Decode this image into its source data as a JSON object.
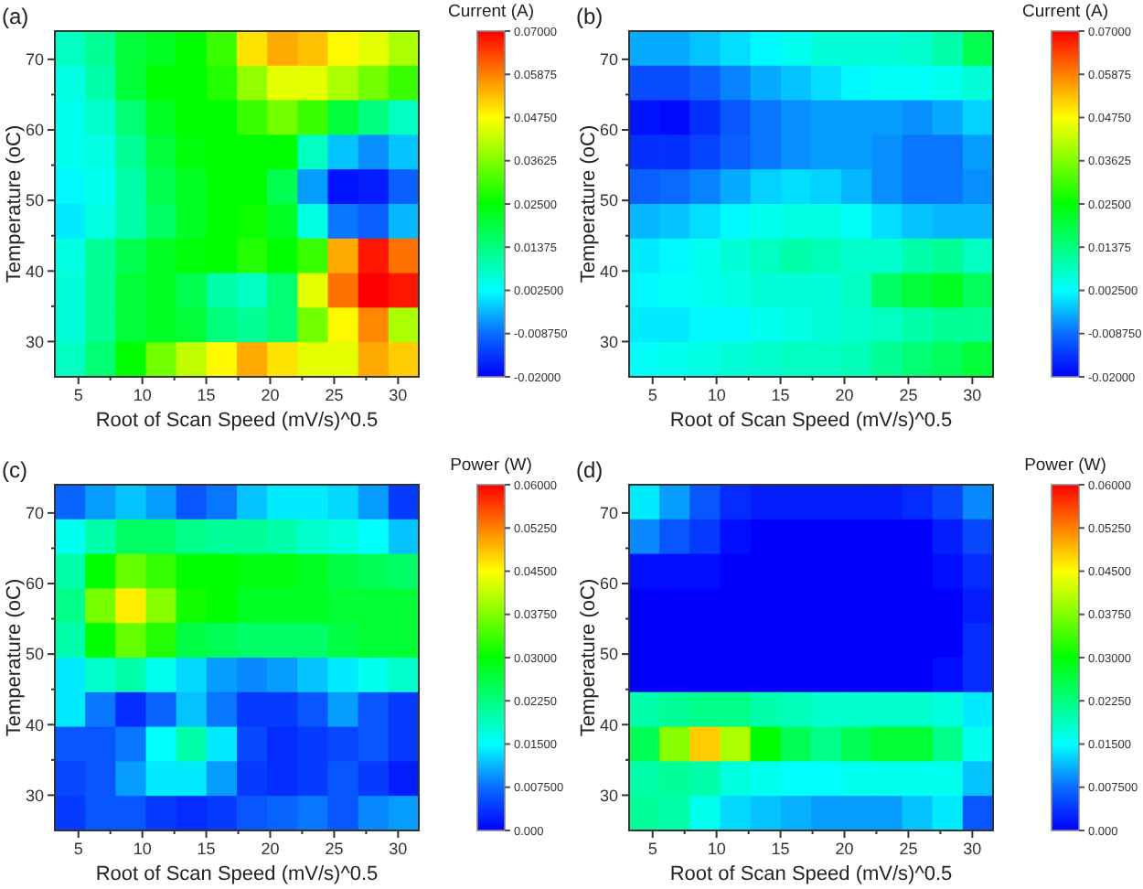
{
  "chart_data": [
    {
      "type": "heatmap",
      "title": "(a)",
      "xlabel": "Root of Scan Speed (mV/s)^0.5",
      "ylabel": "Temperature (oC)",
      "clabel": "Current (A)",
      "xlim": [
        3.16,
        31.62
      ],
      "xticks": [
        5,
        {
          "value": 7.5,
          "label": null
        },
        10,
        {
          "value": 12.5,
          "label": null
        },
        15,
        {
          "value": 17.5,
          "label": null
        },
        20,
        {
          "value": 22.5,
          "label": null
        },
        25,
        {
          "value": 27.5,
          "label": null
        },
        30
      ],
      "ylim": [
        25,
        74
      ],
      "yticks": [
        30,
        {
          "value": 35,
          "label": null
        },
        40,
        {
          "value": 45,
          "label": null
        },
        50,
        {
          "value": 55,
          "label": null
        },
        60,
        {
          "value": 65,
          "label": null
        },
        70
      ],
      "clim": [
        -0.02,
        0.07
      ],
      "cticks": [
        {
          "value": -0.02,
          "label": "-0.02000"
        },
        {
          "value": -0.00875,
          "label": "-0.008750"
        },
        {
          "value": 0.0025,
          "label": "0.002500"
        },
        0.01375,
        {
          "value": 0.025,
          "label": "0.02500"
        },
        0.03625,
        {
          "value": 0.0475,
          "label": "0.04750"
        },
        0.05875,
        {
          "value": 0.07,
          "label": "0.07000"
        }
      ],
      "cells": [
        [
          0.008,
          0.012,
          0.02,
          0.022,
          0.025,
          0.03,
          0.05,
          0.055,
          0.053,
          0.048,
          0.045,
          0.04
        ],
        [
          0.005,
          0.01,
          0.02,
          0.025,
          0.025,
          0.028,
          0.038,
          0.045,
          0.045,
          0.04,
          0.035,
          0.03
        ],
        [
          0.004,
          0.007,
          0.015,
          0.022,
          0.025,
          0.025,
          0.03,
          0.035,
          0.03,
          0.02,
          0.014,
          0.008
        ],
        [
          0.004,
          0.005,
          0.012,
          0.02,
          0.024,
          0.025,
          0.025,
          0.025,
          0.008,
          -0.002,
          -0.006,
          -0.002
        ],
        [
          0.002,
          0.004,
          0.01,
          0.018,
          0.022,
          0.025,
          0.025,
          0.018,
          -0.005,
          -0.018,
          -0.017,
          -0.01
        ],
        [
          0.001,
          0.005,
          0.01,
          0.016,
          0.022,
          0.025,
          0.026,
          0.022,
          0.005,
          -0.008,
          -0.01,
          -0.003
        ],
        [
          0.005,
          0.012,
          0.018,
          0.022,
          0.024,
          0.025,
          0.028,
          0.025,
          0.03,
          0.055,
          0.068,
          0.06
        ],
        [
          0.006,
          0.012,
          0.02,
          0.022,
          0.018,
          0.01,
          0.008,
          0.015,
          0.045,
          0.06,
          0.07,
          0.068
        ],
        [
          0.006,
          0.012,
          0.02,
          0.022,
          0.02,
          0.014,
          0.012,
          0.015,
          0.035,
          0.048,
          0.058,
          0.04
        ],
        [
          0.008,
          0.015,
          0.025,
          0.035,
          0.042,
          0.048,
          0.055,
          0.05,
          0.045,
          0.045,
          0.055,
          0.052
        ]
      ]
    },
    {
      "type": "heatmap",
      "title": "(b)",
      "xlabel": "Root of Scan Speed (mV/s)^0.5",
      "ylabel": "Temperature (oC)",
      "clabel": "Current (A)",
      "xlim": [
        3.16,
        31.62
      ],
      "xticks": [
        5,
        {
          "value": 7.5,
          "label": null
        },
        10,
        {
          "value": 12.5,
          "label": null
        },
        15,
        {
          "value": 17.5,
          "label": null
        },
        20,
        {
          "value": 22.5,
          "label": null
        },
        25,
        {
          "value": 27.5,
          "label": null
        },
        30
      ],
      "ylim": [
        25,
        74
      ],
      "yticks": [
        30,
        {
          "value": 35,
          "label": null
        },
        40,
        {
          "value": 45,
          "label": null
        },
        50,
        {
          "value": 55,
          "label": null
        },
        60,
        {
          "value": 65,
          "label": null
        },
        70
      ],
      "clim": [
        -0.02,
        0.07
      ],
      "cticks": [
        {
          "value": -0.02,
          "label": "-0.02000"
        },
        {
          "value": -0.00875,
          "label": "-0.008750"
        },
        {
          "value": 0.0025,
          "label": "0.002500"
        },
        0.01375,
        {
          "value": 0.025,
          "label": "0.02500"
        },
        0.03625,
        {
          "value": 0.0475,
          "label": "0.04750"
        },
        0.05875,
        {
          "value": 0.07,
          "label": "0.07000"
        }
      ],
      "cells": [
        [
          -0.004,
          -0.004,
          -0.002,
          0,
          0.002,
          0.004,
          0.006,
          0.006,
          0.006,
          0.007,
          0.01,
          0.018
        ],
        [
          -0.012,
          -0.012,
          -0.01,
          -0.007,
          -0.004,
          -0.002,
          0,
          0.002,
          0.003,
          0.003,
          0.004,
          0.006
        ],
        [
          -0.018,
          -0.019,
          -0.015,
          -0.011,
          -0.008,
          -0.006,
          -0.005,
          -0.005,
          -0.005,
          -0.006,
          -0.004,
          -0.001
        ],
        [
          -0.015,
          -0.015,
          -0.013,
          -0.01,
          -0.008,
          -0.006,
          -0.005,
          -0.005,
          -0.006,
          -0.008,
          -0.008,
          -0.005
        ],
        [
          -0.01,
          -0.009,
          -0.007,
          -0.004,
          -0.001,
          0,
          -0.001,
          -0.003,
          -0.006,
          -0.008,
          -0.008,
          -0.006
        ],
        [
          -0.003,
          -0.002,
          0,
          0.002,
          0.004,
          0.005,
          0.005,
          0.003,
          0,
          -0.002,
          -0.003,
          -0.003
        ],
        [
          0.001,
          0.002,
          0.004,
          0.006,
          0.008,
          0.01,
          0.009,
          0.007,
          0.007,
          0.01,
          0.012,
          0.008
        ],
        [
          0.002,
          0.003,
          0.004,
          0.005,
          0.006,
          0.006,
          0.006,
          0.008,
          0.016,
          0.02,
          0.022,
          0.017
        ],
        [
          0.001,
          0.001,
          0.002,
          0.002,
          0.004,
          0.005,
          0.006,
          0.007,
          0.008,
          0.01,
          0.012,
          0.012
        ],
        [
          0.003,
          0.004,
          0.005,
          0.006,
          0.007,
          0.008,
          0.008,
          0.009,
          0.012,
          0.015,
          0.017,
          0.02
        ]
      ]
    },
    {
      "type": "heatmap",
      "title": "(c)",
      "xlabel": "Root of Scan Speed (mV/s)^0.5",
      "ylabel": "Temperature (oC)",
      "clabel": "Power (W)",
      "xlim": [
        3.16,
        31.62
      ],
      "xticks": [
        5,
        {
          "value": 7.5,
          "label": null
        },
        10,
        {
          "value": 12.5,
          "label": null
        },
        15,
        {
          "value": 17.5,
          "label": null
        },
        20,
        {
          "value": 22.5,
          "label": null
        },
        25,
        {
          "value": 27.5,
          "label": null
        },
        30
      ],
      "ylim": [
        25,
        74
      ],
      "yticks": [
        30,
        {
          "value": 35,
          "label": null
        },
        40,
        {
          "value": 45,
          "label": null
        },
        50,
        {
          "value": 55,
          "label": null
        },
        60,
        {
          "value": 65,
          "label": null
        },
        70
      ],
      "clim": [
        0,
        0.06
      ],
      "cticks": [
        {
          "value": 0,
          "label": "0.000"
        },
        {
          "value": 0.0075,
          "label": "0.007500"
        },
        {
          "value": 0.015,
          "label": "0.01500"
        },
        {
          "value": 0.0225,
          "label": "0.02250"
        },
        {
          "value": 0.03,
          "label": "0.03000"
        },
        {
          "value": 0.0375,
          "label": "0.03750"
        },
        {
          "value": 0.045,
          "label": "0.04500"
        },
        {
          "value": 0.0525,
          "label": "0.05250"
        },
        {
          "value": 0.06,
          "label": "0.06000"
        }
      ],
      "cells": [
        [
          0.007,
          0.01,
          0.012,
          0.01,
          0.006,
          0.008,
          0.012,
          0.014,
          0.014,
          0.013,
          0.01,
          0.004
        ],
        [
          0.016,
          0.02,
          0.024,
          0.024,
          0.022,
          0.021,
          0.021,
          0.02,
          0.018,
          0.017,
          0.015,
          0.012
        ],
        [
          0.02,
          0.03,
          0.036,
          0.033,
          0.03,
          0.03,
          0.029,
          0.029,
          0.028,
          0.026,
          0.025,
          0.024
        ],
        [
          0.022,
          0.037,
          0.046,
          0.038,
          0.031,
          0.03,
          0.028,
          0.028,
          0.028,
          0.027,
          0.027,
          0.027
        ],
        [
          0.02,
          0.03,
          0.036,
          0.032,
          0.026,
          0.025,
          0.024,
          0.024,
          0.024,
          0.026,
          0.027,
          0.027
        ],
        [
          0.014,
          0.018,
          0.02,
          0.016,
          0.013,
          0.01,
          0.009,
          0.01,
          0.012,
          0.014,
          0.016,
          0.018
        ],
        [
          0.014,
          0.008,
          0.003,
          0.007,
          0.012,
          0.008,
          0.004,
          0.004,
          0.006,
          0.01,
          0.006,
          0.004
        ],
        [
          0.006,
          0.006,
          0.008,
          0.015,
          0.02,
          0.014,
          0.005,
          0.003,
          0.004,
          0.005,
          0.006,
          0.004
        ],
        [
          0.005,
          0.006,
          0.01,
          0.014,
          0.014,
          0.01,
          0.004,
          0.003,
          0.004,
          0.006,
          0.004,
          0.002
        ],
        [
          0.004,
          0.006,
          0.006,
          0.004,
          0.003,
          0.004,
          0.006,
          0.007,
          0.008,
          0.006,
          0.009,
          0.01
        ]
      ]
    },
    {
      "type": "heatmap",
      "title": "(d)",
      "xlabel": "Root of Scan Speed (mV/s)^0.5",
      "ylabel": "Temperature (oC)",
      "clabel": "Power (W)",
      "xlim": [
        3.16,
        31.62
      ],
      "xticks": [
        5,
        {
          "value": 7.5,
          "label": null
        },
        10,
        {
          "value": 12.5,
          "label": null
        },
        15,
        {
          "value": 17.5,
          "label": null
        },
        20,
        {
          "value": 22.5,
          "label": null
        },
        25,
        {
          "value": 27.5,
          "label": null
        },
        30
      ],
      "ylim": [
        25,
        74
      ],
      "yticks": [
        30,
        {
          "value": 35,
          "label": null
        },
        40,
        {
          "value": 45,
          "label": null
        },
        50,
        {
          "value": 55,
          "label": null
        },
        60,
        {
          "value": 65,
          "label": null
        },
        70
      ],
      "clim": [
        0,
        0.06
      ],
      "cticks": [
        {
          "value": 0,
          "label": "0.000"
        },
        {
          "value": 0.0075,
          "label": "0.007500"
        },
        {
          "value": 0.015,
          "label": "0.01500"
        },
        {
          "value": 0.0225,
          "label": "0.02250"
        },
        {
          "value": 0.03,
          "label": "0.03000"
        },
        {
          "value": 0.0375,
          "label": "0.03750"
        },
        {
          "value": 0.045,
          "label": "0.04500"
        },
        {
          "value": 0.0525,
          "label": "0.05250"
        },
        {
          "value": 0.06,
          "label": "0.06000"
        }
      ],
      "cells": [
        [
          0.014,
          0.01,
          0.006,
          0.003,
          0.002,
          0.002,
          0.002,
          0.002,
          0.002,
          0.003,
          0.005,
          0.009
        ],
        [
          0.009,
          0.006,
          0.004,
          0.001,
          0,
          0,
          0,
          0,
          0,
          0,
          0.002,
          0.005
        ],
        [
          0.001,
          0.001,
          0.001,
          0,
          0,
          0,
          0,
          0,
          0,
          0,
          0.001,
          0.003
        ],
        [
          0,
          0,
          0,
          0,
          0,
          0,
          0,
          0,
          0,
          0,
          0,
          0.002
        ],
        [
          0,
          0,
          0,
          0,
          0,
          0,
          0,
          0,
          0,
          0,
          0,
          0.003
        ],
        [
          0,
          0,
          0,
          0,
          0,
          0,
          0,
          0,
          0,
          0,
          0.001,
          0.003
        ],
        [
          0.02,
          0.021,
          0.022,
          0.022,
          0.02,
          0.019,
          0.018,
          0.018,
          0.018,
          0.018,
          0.017,
          0.014
        ],
        [
          0.025,
          0.038,
          0.048,
          0.04,
          0.03,
          0.025,
          0.022,
          0.025,
          0.027,
          0.027,
          0.022,
          0.016
        ],
        [
          0.02,
          0.021,
          0.02,
          0.017,
          0.016,
          0.015,
          0.015,
          0.016,
          0.016,
          0.016,
          0.016,
          0.012
        ],
        [
          0.021,
          0.02,
          0.016,
          0.013,
          0.012,
          0.011,
          0.01,
          0.01,
          0.01,
          0.012,
          0.014,
          0.006
        ]
      ]
    }
  ]
}
